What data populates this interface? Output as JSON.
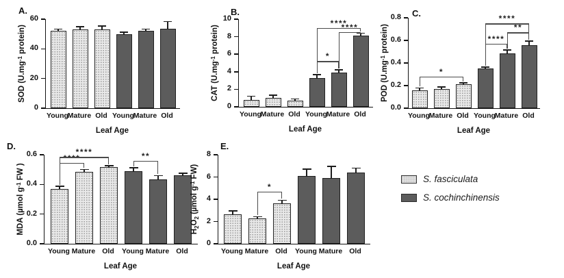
{
  "legend": {
    "position": "right-middle",
    "items": [
      {
        "label": "S. fasciculata",
        "swatch": "light-stippled"
      },
      {
        "label": "S. cochinchinensis",
        "swatch": "dark-solid"
      }
    ]
  },
  "colors": {
    "light_bar_fill": "#e9e9e9",
    "light_bar_dot": "#989898",
    "dark_bar_fill": "#5c5c5c",
    "bar_border": "#1f1f1f",
    "axis": "#111111",
    "bracket": "#4a4a4a",
    "background": "#ffffff"
  },
  "chart_data": [
    {
      "id": "A",
      "panel_label": "A.",
      "type": "bar",
      "xlabel": "Leaf Age",
      "ylabel_runs": [
        {
          "t": "SOD (U.mg"
        },
        {
          "t": "-1",
          "s": "sup"
        },
        {
          "t": " protein)"
        }
      ],
      "ylim": [
        0,
        60
      ],
      "yticks": [
        0,
        20,
        40,
        60
      ],
      "ytick_labels": [
        "0",
        "20",
        "40",
        "60"
      ],
      "categories": [
        "Young",
        "Mature",
        "Old"
      ],
      "series": [
        {
          "name": "S. fasciculata",
          "values": [
            52,
            53,
            53
          ],
          "errors": [
            1,
            1.5,
            2
          ]
        },
        {
          "name": "S. cochinchinensis",
          "values": [
            50,
            52,
            53.5
          ],
          "errors": [
            1,
            1,
            4.5
          ]
        }
      ],
      "significance": []
    },
    {
      "id": "B",
      "panel_label": "B.",
      "type": "bar",
      "xlabel": "Leaf Age",
      "ylabel_runs": [
        {
          "t": "CAT (U.mg"
        },
        {
          "t": "-1",
          "s": "sup"
        },
        {
          "t": " protein)"
        }
      ],
      "ylim": [
        0,
        10
      ],
      "yticks": [
        0,
        2,
        4,
        6,
        8,
        10
      ],
      "ytick_labels": [
        "0",
        "2",
        "4",
        "6",
        "8",
        "10"
      ],
      "categories": [
        "Young",
        "Mature",
        "Old"
      ],
      "series": [
        {
          "name": "S. fasciculata",
          "values": [
            0.78,
            1.05,
            0.72
          ],
          "errors": [
            0.38,
            0.22,
            0.12
          ]
        },
        {
          "name": "S. cochinchinensis",
          "values": [
            3.25,
            3.9,
            8.1
          ],
          "errors": [
            0.35,
            0.25,
            0.25
          ]
        }
      ],
      "significance": [
        {
          "from": 3,
          "to": 4,
          "level": 5.2,
          "label": "*"
        },
        {
          "from": 4,
          "to": 5,
          "level": 8.55,
          "label": "****"
        },
        {
          "from": 3,
          "to": 5,
          "level": 9.0,
          "label": "****"
        }
      ]
    },
    {
      "id": "C",
      "panel_label": "C.",
      "type": "bar",
      "xlabel": "Leaf Age",
      "ylabel_runs": [
        {
          "t": "POD (U.mg"
        },
        {
          "t": "-1",
          "s": "sup"
        },
        {
          "t": " protein)"
        }
      ],
      "ylim": [
        0,
        0.8
      ],
      "yticks": [
        0,
        0.2,
        0.4,
        0.6,
        0.8
      ],
      "ytick_labels": [
        "0.0",
        "0.2",
        "0.4",
        "0.6",
        "0.8"
      ],
      "categories": [
        "Young",
        "Mature",
        "Old"
      ],
      "series": [
        {
          "name": "S. fasciculata",
          "values": [
            0.16,
            0.17,
            0.21
          ],
          "errors": [
            0.015,
            0.012,
            0.01
          ]
        },
        {
          "name": "S. cochinchinensis",
          "values": [
            0.35,
            0.485,
            0.56
          ],
          "errors": [
            0.008,
            0.025,
            0.03
          ]
        }
      ],
      "significance": [
        {
          "from": 0,
          "to": 2,
          "level": 0.28,
          "label": "*"
        },
        {
          "from": 3,
          "to": 4,
          "level": 0.57,
          "label": "****"
        },
        {
          "from": 4,
          "to": 5,
          "level": 0.67,
          "label": "**"
        },
        {
          "from": 3,
          "to": 5,
          "level": 0.75,
          "label": "****"
        }
      ]
    },
    {
      "id": "D",
      "panel_label": "D.",
      "type": "bar",
      "xlabel": "Leaf Age",
      "ylabel_runs": [
        {
          "t": "MDA (µmol g"
        },
        {
          "t": "-1",
          "s": "sup"
        },
        {
          "t": " FW )"
        }
      ],
      "ylim": [
        0,
        0.6
      ],
      "yticks": [
        0,
        0.2,
        0.4,
        0.6
      ],
      "ytick_labels": [
        "0.0",
        "0.2",
        "0.4",
        "0.6"
      ],
      "categories": [
        "Young",
        "Mature",
        "Old"
      ],
      "series": [
        {
          "name": "S. fasciculata",
          "values": [
            0.37,
            0.485,
            0.515
          ],
          "errors": [
            0.015,
            0.012,
            0.008
          ]
        },
        {
          "name": "S. cochinchinensis",
          "values": [
            0.49,
            0.435,
            0.46
          ],
          "errors": [
            0.018,
            0.02,
            0.012
          ]
        }
      ],
      "significance": [
        {
          "from": 0,
          "to": 1,
          "level": 0.545,
          "label": "****"
        },
        {
          "from": 0,
          "to": 2,
          "level": 0.585,
          "label": "****"
        },
        {
          "from": 3,
          "to": 4,
          "level": 0.56,
          "label": "**"
        }
      ]
    },
    {
      "id": "E",
      "panel_label": "E.",
      "type": "bar",
      "xlabel": "Leaf Age",
      "ylabel_runs": [
        {
          "t": "H"
        },
        {
          "t": "2",
          "s": "sub"
        },
        {
          "t": "O"
        },
        {
          "t": "2",
          "s": "sub"
        },
        {
          "t": " (µmol g"
        },
        {
          "t": "-1",
          "s": "sup"
        },
        {
          "t": " FW)"
        }
      ],
      "ylim": [
        0,
        8
      ],
      "yticks": [
        0,
        2,
        4,
        6,
        8
      ],
      "ytick_labels": [
        "0",
        "2",
        "4",
        "6",
        "8"
      ],
      "categories": [
        "Young",
        "Mature",
        "Old"
      ],
      "series": [
        {
          "name": "S. fasciculata",
          "values": [
            2.65,
            2.3,
            3.65
          ],
          "errors": [
            0.25,
            0.08,
            0.2
          ]
        },
        {
          "name": "S. cochinchinensis",
          "values": [
            6.1,
            5.9,
            6.4
          ],
          "errors": [
            0.55,
            1.0,
            0.35
          ]
        }
      ],
      "significance": [
        {
          "from": 1,
          "to": 2,
          "level": 4.7,
          "label": "*"
        }
      ]
    }
  ]
}
